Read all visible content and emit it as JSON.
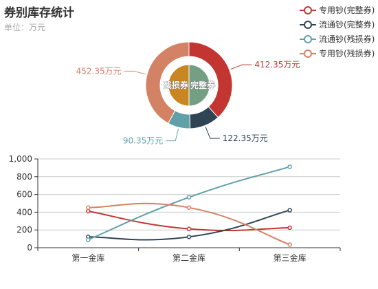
{
  "title": "券别库存统计",
  "subtitle": "单位：万元",
  "colors": {
    "zy_wz": "#c23531",
    "lt_wz": "#2f4554",
    "lt_cs": "#61a0a8",
    "zy_cs": "#d48265",
    "inner_wz": "#749f83",
    "inner_cs": "#ca8622",
    "axis": "#333333",
    "grid": "#cccccc"
  },
  "legend": [
    {
      "label": "专用钞(完整券)"
    },
    {
      "label": "流通钞(完整券)"
    },
    {
      "label": "流通钞(残损券)"
    },
    {
      "label": "专用钞(残损券)"
    }
  ],
  "chart_data": [
    {
      "type": "pie",
      "subtype": "nested-donut",
      "inner": [
        {
          "name": "残损券",
          "value": 1
        },
        {
          "name": "完整券",
          "value": 1
        }
      ],
      "outer": [
        {
          "name": "专用钞(完整券)",
          "value": 412.35,
          "label": "412.35万元"
        },
        {
          "name": "流通钞(完整券)",
          "value": 122.35,
          "label": "122.35万元"
        },
        {
          "name": "流通钞(残损券)",
          "value": 90.35,
          "label": "90.35万元"
        },
        {
          "name": "专用钞(残损券)",
          "value": 452.35,
          "label": "452.35万元"
        }
      ]
    },
    {
      "type": "line",
      "categories": [
        "第一金库",
        "第二金库",
        "第三金库"
      ],
      "ylim": [
        0,
        1000
      ],
      "yticks": [
        "0",
        "200",
        "400",
        "600",
        "800",
        "1,000"
      ],
      "grid": true,
      "smooth": true,
      "series": [
        {
          "name": "专用钞(完整券)",
          "values": [
            412,
            212,
            225
          ]
        },
        {
          "name": "流通钞(完整券)",
          "values": [
            122,
            122,
            422
          ]
        },
        {
          "name": "流通钞(残损券)",
          "values": [
            90,
            568,
            912
          ]
        },
        {
          "name": "专用钞(残损券)",
          "values": [
            452,
            452,
            35
          ]
        }
      ]
    }
  ]
}
